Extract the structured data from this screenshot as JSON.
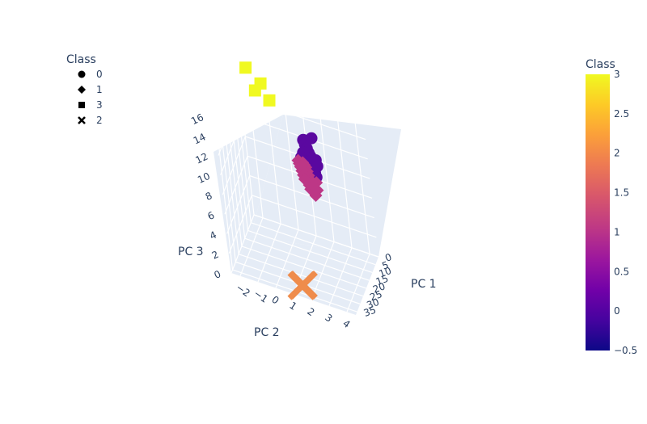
{
  "chart_data": {
    "type": "scatter",
    "subtype": "scatter3d",
    "title": "",
    "axes": {
      "x": {
        "label": "PC 1",
        "ticks": [
          0,
          5,
          10,
          15,
          20,
          25,
          30,
          35
        ],
        "range": [
          0,
          37
        ]
      },
      "y": {
        "label": "PC 2",
        "ticks": [
          -2,
          -1,
          0,
          1,
          2,
          3,
          4
        ],
        "range": [
          -2.5,
          4.5
        ]
      },
      "z": {
        "label": "PC 3",
        "ticks": [
          0,
          2,
          4,
          6,
          8,
          10,
          12,
          14,
          16
        ],
        "range": [
          0,
          16.5
        ]
      }
    },
    "grid": true,
    "legend": {
      "title": "Class",
      "placement": "top-left",
      "entries": [
        {
          "label": "0",
          "symbol": "circle"
        },
        {
          "label": "1",
          "symbol": "diamond"
        },
        {
          "label": "3",
          "symbol": "square"
        },
        {
          "label": "2",
          "symbol": "x"
        }
      ]
    },
    "colorbar": {
      "title": "Class",
      "placement": "right",
      "range": [
        -0.5,
        3
      ],
      "ticks": [
        "3",
        "2.5",
        "2",
        "1.5",
        "1",
        "0.5",
        "0",
        "−0.5"
      ],
      "colorscale": [
        "#0d0887",
        "#46039f",
        "#7201a8",
        "#9c179e",
        "#bd3786",
        "#d8576b",
        "#ed7953",
        "#fb9f3a",
        "#fdca26",
        "#f0f921"
      ]
    },
    "series": [
      {
        "class": 0,
        "symbol": "circle",
        "color": "#5a08a0",
        "points": [
          {
            "x": 1,
            "y": 0.9,
            "z": 9.9
          },
          {
            "x": 1.5,
            "y": 1.0,
            "z": 9.6
          },
          {
            "x": 2,
            "y": 1.1,
            "z": 9.3
          },
          {
            "x": 2.5,
            "y": 1.2,
            "z": 9.0
          },
          {
            "x": 3,
            "y": 1.3,
            "z": 8.8
          },
          {
            "x": 3.5,
            "y": 1.2,
            "z": 8.6
          },
          {
            "x": 4,
            "y": 1.1,
            "z": 8.5
          },
          {
            "x": 4.5,
            "y": 1.3,
            "z": 8.3
          },
          {
            "x": 5,
            "y": 1.4,
            "z": 8.1
          },
          {
            "x": 5.5,
            "y": 1.5,
            "z": 7.9
          },
          {
            "x": 3.2,
            "y": 1.6,
            "z": 8.6
          },
          {
            "x": 4.2,
            "y": 1.7,
            "z": 8.2
          },
          {
            "x": 2.8,
            "y": 0.9,
            "z": 8.9
          },
          {
            "x": 5.8,
            "y": 1.6,
            "z": 7.7
          },
          {
            "x": 6.3,
            "y": 1.5,
            "z": 7.6
          },
          {
            "x": 6.8,
            "y": 1.7,
            "z": 7.5
          },
          {
            "x": 3.8,
            "y": 0.8,
            "z": 8.5
          },
          {
            "x": 1.2,
            "y": 1.4,
            "z": 10.4
          }
        ]
      },
      {
        "class": 1,
        "symbol": "diamond",
        "color": "#bd3786",
        "points": [
          {
            "x": 7,
            "y": 1.0,
            "z": 8.6
          },
          {
            "x": 7.5,
            "y": 1.1,
            "z": 8.5
          },
          {
            "x": 8,
            "y": 1.2,
            "z": 8.4
          },
          {
            "x": 8.5,
            "y": 1.1,
            "z": 8.3
          },
          {
            "x": 9,
            "y": 1.3,
            "z": 8.2
          },
          {
            "x": 9.5,
            "y": 1.2,
            "z": 8.1
          },
          {
            "x": 10,
            "y": 1.4,
            "z": 8.0
          },
          {
            "x": 10.5,
            "y": 1.3,
            "z": 7.9
          },
          {
            "x": 11,
            "y": 1.5,
            "z": 7.8
          },
          {
            "x": 11.5,
            "y": 1.4,
            "z": 7.7
          },
          {
            "x": 12,
            "y": 1.6,
            "z": 7.6
          },
          {
            "x": 12.5,
            "y": 1.5,
            "z": 7.5
          },
          {
            "x": 13,
            "y": 1.7,
            "z": 7.4
          },
          {
            "x": 13.5,
            "y": 1.6,
            "z": 7.3
          },
          {
            "x": 14,
            "y": 1.8,
            "z": 7.2
          },
          {
            "x": 8.2,
            "y": 0.8,
            "z": 8.9
          },
          {
            "x": 9.2,
            "y": 0.9,
            "z": 8.8
          },
          {
            "x": 10.2,
            "y": 1.0,
            "z": 8.7
          },
          {
            "x": 11.2,
            "y": 1.1,
            "z": 8.5
          },
          {
            "x": 12.2,
            "y": 1.2,
            "z": 8.3
          },
          {
            "x": 13.2,
            "y": 1.3,
            "z": 8.1
          },
          {
            "x": 14.5,
            "y": 1.9,
            "z": 7.0
          },
          {
            "x": 9.8,
            "y": 1.8,
            "z": 7.5
          },
          {
            "x": 11.8,
            "y": 1.9,
            "z": 7.1
          }
        ]
      },
      {
        "class": 3,
        "symbol": "square",
        "color": "#f0f921",
        "points": [
          {
            "x": 1,
            "y": -2.0,
            "z": 15.5
          },
          {
            "x": 3,
            "y": -1.5,
            "z": 13.8
          },
          {
            "x": 6,
            "y": -1.0,
            "z": 15.3
          },
          {
            "x": 8,
            "y": -0.5,
            "z": 14.2
          }
        ]
      },
      {
        "class": 2,
        "symbol": "x",
        "color": "#ef8c4c",
        "points": [
          {
            "x": 36,
            "y": 1.5,
            "z": 1.0
          },
          {
            "x": 36.5,
            "y": 1.6,
            "z": 1.2
          }
        ]
      }
    ]
  }
}
